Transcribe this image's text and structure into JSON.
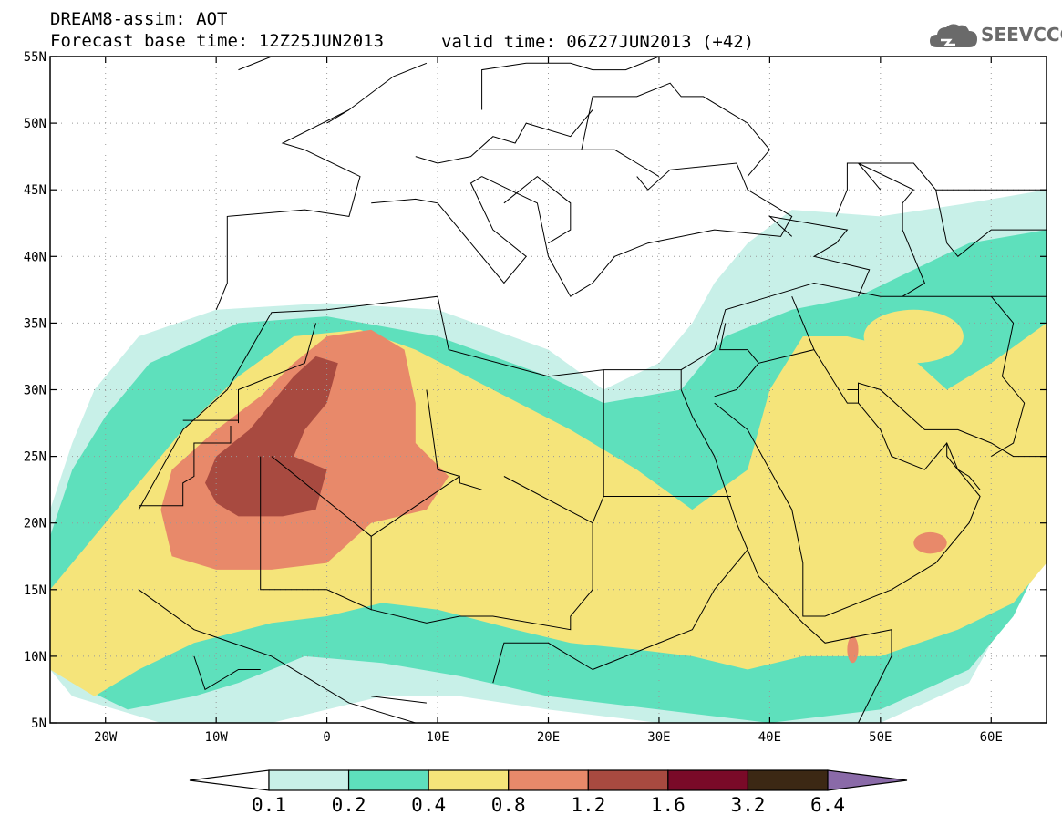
{
  "header": {
    "line1": "DREAM8-assim: AOT",
    "line2_left": "Forecast base time: 12Z25JUN2013",
    "line2_right": "valid time: 06Z27JUN2013 (+42)"
  },
  "logo": {
    "icon": "cloud-icon",
    "text": "SEEVCCC"
  },
  "map": {
    "lon_range": [
      -25,
      65
    ],
    "lat_range": [
      5,
      55
    ],
    "lat_ticks": [
      {
        "value": 55,
        "label": "55N"
      },
      {
        "value": 50,
        "label": "50N"
      },
      {
        "value": 45,
        "label": "45N"
      },
      {
        "value": 40,
        "label": "40N"
      },
      {
        "value": 35,
        "label": "35N"
      },
      {
        "value": 30,
        "label": "30N"
      },
      {
        "value": 25,
        "label": "25N"
      },
      {
        "value": 20,
        "label": "20N"
      },
      {
        "value": 15,
        "label": "15N"
      },
      {
        "value": 10,
        "label": "10N"
      },
      {
        "value": 5,
        "label": "5N"
      }
    ],
    "lon_ticks": [
      {
        "value": -20,
        "label": "20W"
      },
      {
        "value": -10,
        "label": "10W"
      },
      {
        "value": 0,
        "label": "0"
      },
      {
        "value": 10,
        "label": "10E"
      },
      {
        "value": 20,
        "label": "20E"
      },
      {
        "value": 30,
        "label": "30E"
      },
      {
        "value": 40,
        "label": "40E"
      },
      {
        "value": 50,
        "label": "50E"
      },
      {
        "value": 60,
        "label": "60E"
      }
    ],
    "grid": true
  },
  "colorbar": {
    "labels": [
      "0.1",
      "0.2",
      "0.4",
      "0.8",
      "1.2",
      "1.6",
      "3.2",
      "6.4"
    ],
    "colors": [
      "#ffffff",
      "#c8f0e8",
      "#5ee0bc",
      "#f5e47a",
      "#e8896a",
      "#a84a40",
      "#7a0a28",
      "#3c2814",
      "#8a6aa8"
    ]
  },
  "aot_levels": [
    {
      "color": "#c8f0e8",
      "poly": [
        [
          -25,
          21
        ],
        [
          -23,
          26
        ],
        [
          -21,
          30
        ],
        [
          -17,
          34
        ],
        [
          -10,
          36
        ],
        [
          0,
          36.5
        ],
        [
          10,
          36
        ],
        [
          20,
          33
        ],
        [
          25,
          30
        ],
        [
          30,
          32
        ],
        [
          33,
          35
        ],
        [
          35,
          38
        ],
        [
          38,
          41
        ],
        [
          42,
          43.5
        ],
        [
          50,
          43
        ],
        [
          58,
          44
        ],
        [
          65,
          45
        ],
        [
          65,
          20
        ],
        [
          62,
          14
        ],
        [
          58,
          8
        ],
        [
          50,
          5
        ],
        [
          30,
          5
        ],
        [
          20,
          6
        ],
        [
          12,
          7
        ],
        [
          5,
          7
        ],
        [
          -5,
          5
        ],
        [
          -15,
          5
        ],
        [
          -23,
          7
        ],
        [
          -25,
          9
        ]
      ]
    },
    {
      "color": "#5ee0bc",
      "poly": [
        [
          -25,
          19
        ],
        [
          -23,
          24
        ],
        [
          -20,
          28
        ],
        [
          -16,
          32
        ],
        [
          -8,
          35
        ],
        [
          0,
          35.5
        ],
        [
          10,
          34
        ],
        [
          20,
          31
        ],
        [
          25,
          29
        ],
        [
          32,
          30
        ],
        [
          36,
          34
        ],
        [
          42,
          36
        ],
        [
          48,
          37
        ],
        [
          53,
          39
        ],
        [
          58,
          41
        ],
        [
          65,
          42
        ],
        [
          65,
          18
        ],
        [
          62,
          13
        ],
        [
          58,
          9
        ],
        [
          50,
          6
        ],
        [
          40,
          5
        ],
        [
          30,
          6
        ],
        [
          20,
          7
        ],
        [
          12,
          8.5
        ],
        [
          5,
          9.5
        ],
        [
          -2,
          10
        ],
        [
          -8,
          8
        ],
        [
          -12,
          7
        ],
        [
          -18,
          6
        ],
        [
          -23,
          8
        ],
        [
          -25,
          10
        ]
      ]
    },
    {
      "color": "#f5e47a",
      "poly": [
        [
          -25,
          15
        ],
        [
          -21,
          19
        ],
        [
          -17,
          23
        ],
        [
          -13,
          27
        ],
        [
          -8,
          31
        ],
        [
          -3,
          34
        ],
        [
          3,
          34.5
        ],
        [
          8,
          33
        ],
        [
          15,
          30
        ],
        [
          22,
          27
        ],
        [
          28,
          24
        ],
        [
          33,
          21
        ],
        [
          38,
          24
        ],
        [
          40,
          30
        ],
        [
          43,
          34
        ],
        [
          47,
          34
        ],
        [
          52,
          33
        ],
        [
          56,
          30
        ],
        [
          60,
          32
        ],
        [
          65,
          35
        ],
        [
          65,
          17
        ],
        [
          62,
          14
        ],
        [
          57,
          12
        ],
        [
          50,
          10
        ],
        [
          43,
          10
        ],
        [
          38,
          9
        ],
        [
          33,
          10
        ],
        [
          28,
          10.5
        ],
        [
          22,
          11
        ],
        [
          17,
          12
        ],
        [
          10,
          13.5
        ],
        [
          5,
          14
        ],
        [
          0,
          13
        ],
        [
          -5,
          12.5
        ],
        [
          -12,
          11
        ],
        [
          -17,
          9
        ],
        [
          -21,
          7
        ],
        [
          -25,
          9
        ]
      ]
    },
    {
      "color": "#e8896a",
      "poly": [
        [
          -15,
          21
        ],
        [
          -14,
          24
        ],
        [
          -10,
          27
        ],
        [
          -6,
          29.5
        ],
        [
          -3,
          32
        ],
        [
          0,
          34
        ],
        [
          4,
          34.5
        ],
        [
          7,
          33
        ],
        [
          8,
          29
        ],
        [
          8,
          26
        ],
        [
          11,
          23.5
        ],
        [
          9,
          21
        ],
        [
          4,
          20
        ],
        [
          0,
          17
        ],
        [
          -5,
          16.5
        ],
        [
          -10,
          16.5
        ],
        [
          -14,
          17.5
        ]
      ]
    },
    {
      "color": "#a84a40",
      "poly": [
        [
          -11,
          23
        ],
        [
          -10,
          25
        ],
        [
          -7,
          27
        ],
        [
          -5,
          29
        ],
        [
          -3,
          31
        ],
        [
          -1,
          32.5
        ],
        [
          1,
          32
        ],
        [
          0,
          29
        ],
        [
          -2,
          27
        ],
        [
          -3,
          25
        ],
        [
          0,
          24
        ],
        [
          -1,
          21
        ],
        [
          -4,
          20.5
        ],
        [
          -8,
          20.5
        ],
        [
          -10,
          21.5
        ]
      ]
    }
  ],
  "aot_blobs": [
    {
      "color": "#e8896a",
      "lon": 54.5,
      "lat": 18.5,
      "rx": 1.5,
      "ry": 0.8
    },
    {
      "color": "#e8896a",
      "lon": 47.5,
      "lat": 10.5,
      "rx": 0.5,
      "ry": 1.0
    },
    {
      "color": "#f5e47a",
      "lon": 53,
      "lat": 34,
      "rx": 4.5,
      "ry": 2.0
    }
  ],
  "borders": [
    [
      [
        -17,
        15
      ],
      [
        -12,
        12
      ],
      [
        -5,
        10
      ],
      [
        2,
        6.5
      ],
      [
        10,
        4.5
      ]
    ],
    [
      [
        -17,
        21
      ],
      [
        -13,
        27
      ],
      [
        -9,
        30
      ],
      [
        -5,
        35.8
      ],
      [
        0,
        36
      ],
      [
        10,
        37
      ],
      [
        11,
        33
      ],
      [
        20,
        31
      ],
      [
        25,
        31.5
      ],
      [
        32,
        31.5
      ],
      [
        35,
        33
      ],
      [
        36,
        36
      ],
      [
        40,
        37
      ],
      [
        44,
        38
      ],
      [
        50,
        37
      ],
      [
        54,
        37
      ],
      [
        60,
        37
      ],
      [
        65,
        37
      ]
    ],
    [
      [
        -10,
        36
      ],
      [
        -9,
        38
      ],
      [
        -9,
        43
      ],
      [
        -2,
        43.5
      ],
      [
        2,
        43
      ],
      [
        3,
        46
      ],
      [
        -2,
        48
      ],
      [
        -4,
        48.5
      ],
      [
        2,
        51
      ],
      [
        6,
        53.5
      ],
      [
        9,
        54.5
      ]
    ],
    [
      [
        4,
        44
      ],
      [
        8,
        44.3
      ],
      [
        10,
        44
      ],
      [
        13,
        41
      ],
      [
        16,
        38
      ],
      [
        18,
        40
      ],
      [
        15,
        42
      ],
      [
        13,
        45.5
      ],
      [
        14,
        46
      ]
    ],
    [
      [
        14,
        46
      ],
      [
        19,
        44
      ],
      [
        20,
        40
      ],
      [
        22,
        37
      ],
      [
        24,
        38
      ],
      [
        26,
        40
      ],
      [
        29,
        41
      ],
      [
        35,
        42
      ],
      [
        41,
        41.5
      ],
      [
        42,
        43
      ],
      [
        38,
        45
      ],
      [
        37,
        47
      ],
      [
        31,
        46.5
      ],
      [
        29,
        45
      ],
      [
        28,
        46
      ]
    ],
    [
      [
        -8,
        54
      ],
      [
        -5,
        55
      ]
    ],
    [
      [
        0,
        50
      ],
      [
        2,
        51
      ]
    ],
    [
      [
        32,
        31.5
      ],
      [
        32,
        30
      ],
      [
        33,
        28
      ],
      [
        35,
        25
      ],
      [
        37,
        20
      ],
      [
        39,
        16
      ],
      [
        43,
        12.5
      ],
      [
        45,
        11
      ],
      [
        51,
        12
      ],
      [
        51,
        10
      ],
      [
        48,
        5
      ]
    ],
    [
      [
        35,
        29
      ],
      [
        38,
        27
      ],
      [
        42,
        21
      ],
      [
        43,
        17
      ],
      [
        43,
        13
      ],
      [
        45,
        13
      ],
      [
        51,
        15
      ],
      [
        55,
        17
      ],
      [
        58,
        20
      ],
      [
        59,
        22
      ],
      [
        57,
        24
      ],
      [
        56,
        26
      ],
      [
        54,
        24
      ],
      [
        51,
        25
      ],
      [
        50,
        27
      ],
      [
        48,
        29
      ],
      [
        48,
        30.5
      ],
      [
        50,
        30
      ],
      [
        54,
        27
      ],
      [
        57,
        27
      ],
      [
        60,
        26
      ],
      [
        62,
        25
      ],
      [
        66,
        25
      ]
    ],
    [
      [
        -8,
        27.5
      ],
      [
        -8,
        30
      ],
      [
        -2,
        32
      ],
      [
        -1,
        35
      ]
    ],
    [
      [
        -13,
        27.7
      ],
      [
        -8,
        27.7
      ]
    ],
    [
      [
        -17,
        21.3
      ],
      [
        -13,
        21.3
      ],
      [
        -13,
        23
      ],
      [
        -12,
        23.5
      ],
      [
        -12,
        26
      ],
      [
        -8.7,
        26
      ],
      [
        -8.7,
        27.3
      ]
    ],
    [
      [
        -6,
        25
      ],
      [
        -6,
        15
      ],
      [
        -4,
        15
      ],
      [
        0,
        15
      ],
      [
        4,
        13.5
      ],
      [
        4,
        19
      ],
      [
        1,
        21
      ],
      [
        -5,
        25
      ]
    ],
    [
      [
        4,
        19
      ],
      [
        12,
        23.5
      ],
      [
        12,
        23
      ],
      [
        14,
        22.5
      ]
    ],
    [
      [
        9,
        30
      ],
      [
        10,
        24
      ],
      [
        12,
        23.5
      ]
    ],
    [
      [
        16,
        23.5
      ],
      [
        24,
        20
      ],
      [
        24,
        19.5
      ],
      [
        24,
        15
      ],
      [
        22,
        13
      ],
      [
        22,
        12
      ],
      [
        15,
        13
      ],
      [
        14,
        13
      ],
      [
        12,
        13
      ],
      [
        9,
        12.5
      ],
      [
        4,
        13.5
      ]
    ],
    [
      [
        24,
        20
      ],
      [
        25,
        22
      ],
      [
        25,
        31.5
      ]
    ],
    [
      [
        25,
        22
      ],
      [
        36.5,
        22
      ]
    ],
    [
      [
        24,
        9
      ],
      [
        27,
        10
      ],
      [
        33,
        12
      ],
      [
        35,
        15
      ],
      [
        37,
        17
      ],
      [
        38,
        18
      ]
    ],
    [
      [
        15,
        8
      ],
      [
        16,
        11
      ],
      [
        20,
        11
      ],
      [
        24,
        9
      ]
    ],
    [
      [
        4,
        7
      ],
      [
        9,
        6.5
      ]
    ],
    [
      [
        42,
        37
      ],
      [
        44,
        33
      ],
      [
        39,
        32
      ],
      [
        38,
        33
      ],
      [
        35.5,
        33
      ],
      [
        36,
        35
      ]
    ],
    [
      [
        39,
        32
      ],
      [
        37,
        30
      ],
      [
        35,
        29.5
      ]
    ],
    [
      [
        44,
        33
      ],
      [
        47,
        29
      ],
      [
        48,
        29
      ]
    ],
    [
      [
        48,
        37
      ],
      [
        49,
        39
      ],
      [
        44,
        40
      ],
      [
        46,
        41
      ],
      [
        47,
        42
      ],
      [
        40,
        43
      ],
      [
        42,
        41.5
      ]
    ],
    [
      [
        52,
        37
      ],
      [
        53,
        37.5
      ],
      [
        54,
        38
      ],
      [
        53,
        40
      ],
      [
        52,
        42
      ],
      [
        52,
        44
      ],
      [
        53,
        45
      ],
      [
        48,
        47
      ],
      [
        49,
        46
      ],
      [
        50,
        45
      ]
    ],
    [
      [
        60,
        37
      ],
      [
        62,
        35
      ],
      [
        61,
        31
      ],
      [
        63,
        29
      ],
      [
        62,
        26
      ],
      [
        60,
        25
      ]
    ],
    [
      [
        46,
        43
      ],
      [
        47,
        45
      ],
      [
        47,
        47
      ],
      [
        49,
        47
      ],
      [
        53,
        47
      ],
      [
        55,
        45
      ],
      [
        58,
        45
      ],
      [
        60,
        45
      ],
      [
        65,
        45
      ]
    ],
    [
      [
        55,
        45
      ],
      [
        56,
        41
      ],
      [
        57,
        40
      ],
      [
        60,
        42
      ],
      [
        65,
        42
      ]
    ],
    [
      [
        23,
        48
      ],
      [
        24,
        52
      ],
      [
        28,
        52
      ],
      [
        31,
        53
      ],
      [
        32,
        52
      ],
      [
        34,
        52
      ],
      [
        38,
        50
      ],
      [
        40,
        48
      ],
      [
        38,
        46
      ]
    ],
    [
      [
        14,
        48
      ],
      [
        18,
        48
      ],
      [
        22,
        48
      ],
      [
        26,
        48
      ],
      [
        28,
        47
      ],
      [
        30,
        46
      ]
    ],
    [
      [
        8,
        47.5
      ],
      [
        10,
        47
      ],
      [
        13,
        47.5
      ],
      [
        15,
        49
      ],
      [
        17,
        48.5
      ],
      [
        18,
        50
      ],
      [
        22,
        49
      ],
      [
        24,
        51
      ]
    ],
    [
      [
        14,
        51
      ],
      [
        14,
        54
      ],
      [
        18,
        54.5
      ],
      [
        22,
        54.5
      ],
      [
        24,
        54
      ],
      [
        27,
        54
      ],
      [
        30,
        55
      ]
    ],
    [
      [
        16,
        44
      ],
      [
        19,
        46
      ],
      [
        22,
        44
      ],
      [
        22,
        42
      ],
      [
        20,
        41
      ]
    ],
    [
      [
        56,
        26
      ],
      [
        56,
        25
      ],
      [
        57,
        24
      ],
      [
        58,
        23.5
      ],
      [
        59,
        22.5
      ]
    ],
    [
      [
        48,
        29
      ],
      [
        48,
        30
      ],
      [
        47,
        30
      ]
    ],
    [
      [
        -6,
        9
      ],
      [
        -8,
        9
      ],
      [
        -11,
        7.5
      ],
      [
        -12,
        10
      ]
    ]
  ]
}
